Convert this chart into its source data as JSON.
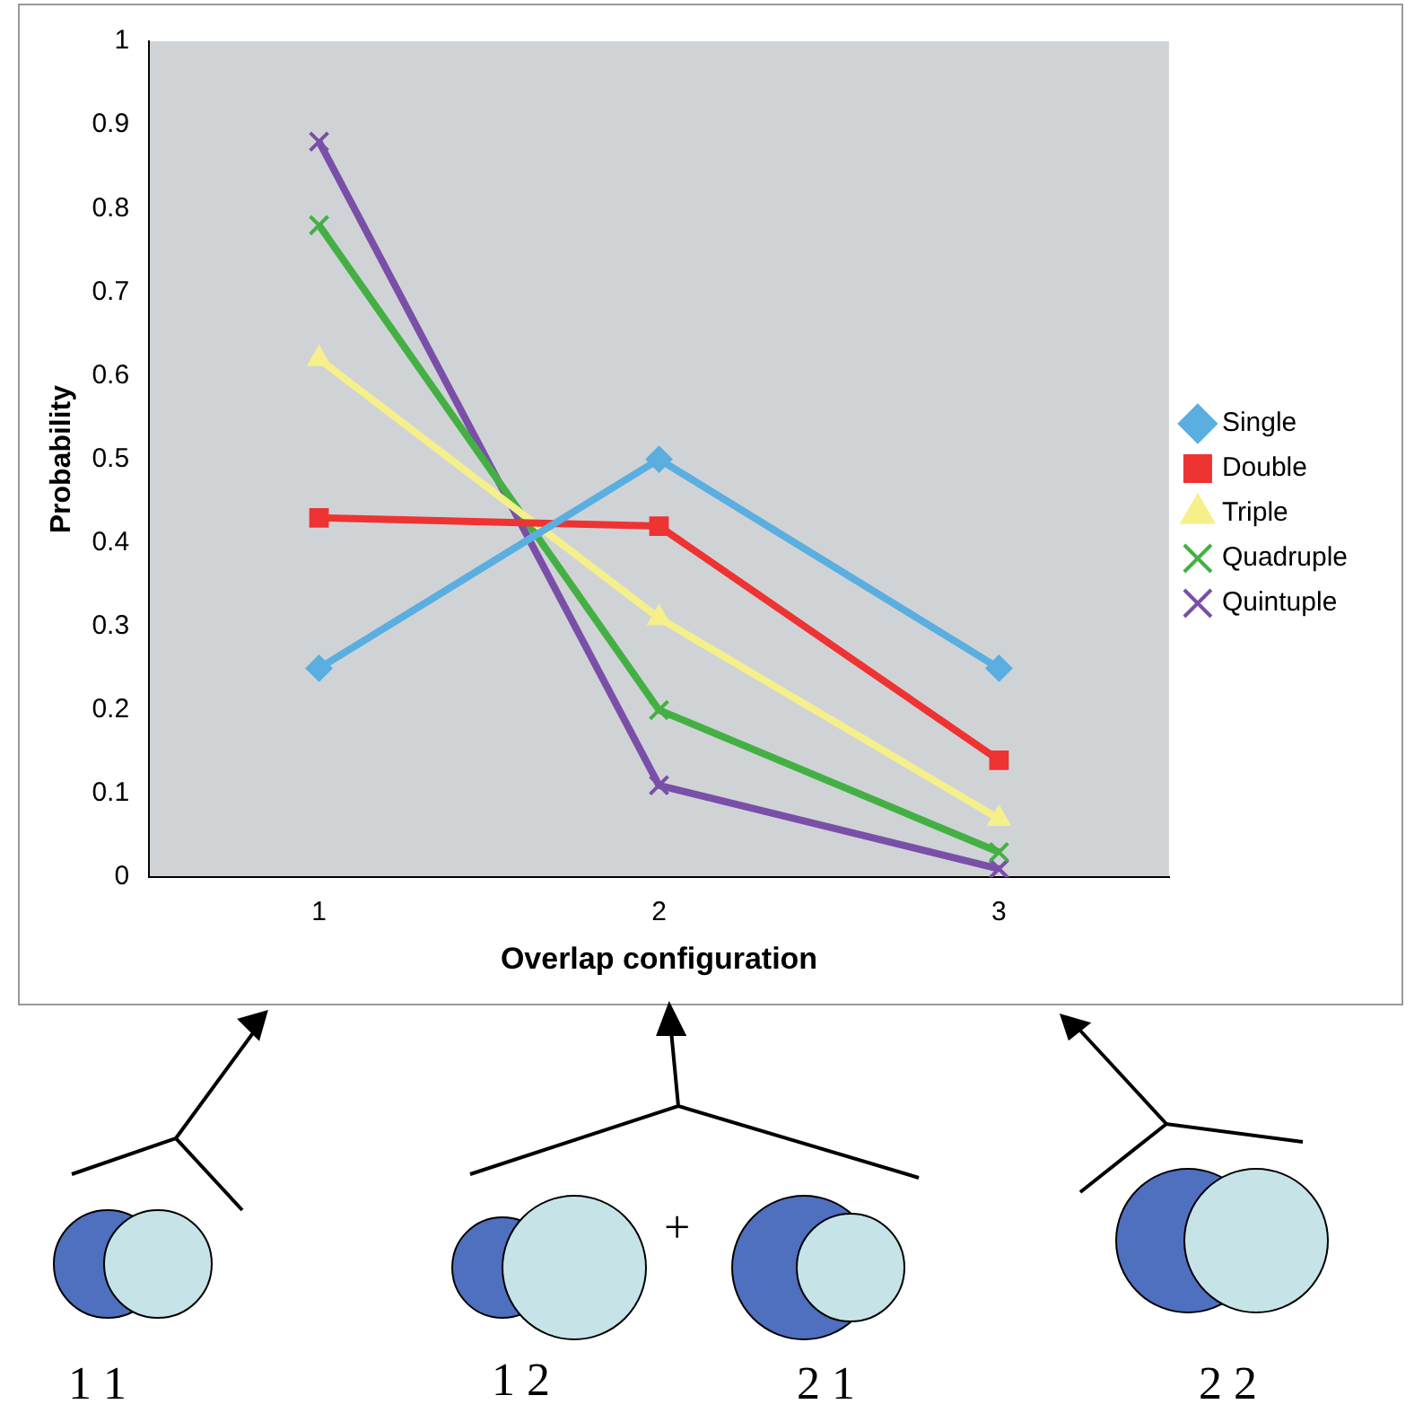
{
  "chart_data": {
    "type": "line",
    "xlabel": "Overlap configuration",
    "ylabel": "Probability",
    "categories": [
      "1",
      "2",
      "3"
    ],
    "series": [
      {
        "name": "Single",
        "color": "#5aaee0",
        "marker": "diamond",
        "values": [
          0.25,
          0.5,
          0.25
        ]
      },
      {
        "name": "Double",
        "color": "#ee3333",
        "marker": "square",
        "values": [
          0.43,
          0.42,
          0.14
        ]
      },
      {
        "name": "Triple",
        "color": "#f5f08a",
        "marker": "triangle",
        "values": [
          0.62,
          0.31,
          0.07
        ]
      },
      {
        "name": "Quadruple",
        "color": "#44b044",
        "marker": "cross",
        "values": [
          0.78,
          0.2,
          0.03
        ]
      },
      {
        "name": "Quintuple",
        "color": "#7a4fa8",
        "marker": "cross",
        "values": [
          0.88,
          0.11,
          0.01
        ]
      }
    ],
    "ylim": [
      0,
      1
    ],
    "yticks": [
      0,
      0.1,
      0.2,
      0.3,
      0.4,
      0.5,
      0.6,
      0.7,
      0.8,
      0.9,
      1
    ],
    "grid": false,
    "legend": "right",
    "annotations": [
      "1 1",
      "1 2",
      "+",
      "2 1",
      "2 2"
    ]
  }
}
